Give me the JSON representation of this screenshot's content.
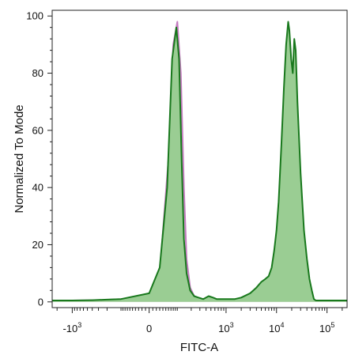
{
  "chart_data": {
    "type": "area",
    "xlabel": "FITC-A",
    "ylabel": "Normalized To Mode",
    "x_scale": "biexponential",
    "xlim": [
      -2500,
      250000
    ],
    "ylim": [
      -2,
      102
    ],
    "grid": false,
    "x_ticks": [
      {
        "value": -1000,
        "base": "-10",
        "exp": "3"
      },
      {
        "value": 0,
        "base": "0",
        "exp": ""
      },
      {
        "value": 1000,
        "base": "10",
        "exp": "3"
      },
      {
        "value": 10000,
        "base": "10",
        "exp": "4"
      },
      {
        "value": 100000,
        "base": "10",
        "exp": "5"
      }
    ],
    "y_ticks": [
      0,
      20,
      40,
      60,
      80,
      100
    ],
    "series": [
      {
        "key": "isotype",
        "fill": "#f7d5ee",
        "stroke": "#c47cc0",
        "x": [
          -2500,
          -1000,
          -300,
          -100,
          0,
          30,
          60,
          80,
          100,
          120,
          140,
          160,
          190,
          230,
          300,
          500,
          1000,
          10000,
          250000
        ],
        "y": [
          0.5,
          0.5,
          0.6,
          1,
          2,
          10,
          50,
          90,
          98,
          80,
          40,
          15,
          5,
          2,
          1,
          0.5,
          0.5,
          0.5,
          0.5
        ]
      },
      {
        "key": "stained",
        "fill": "#9acd93",
        "stroke": "#18781c",
        "x": [
          -2500,
          -1000,
          -400,
          -200,
          -100,
          0,
          30,
          55,
          75,
          95,
          110,
          125,
          140,
          160,
          190,
          230,
          280,
          350,
          450,
          550,
          650,
          800,
          1000,
          1500,
          2000,
          3000,
          4000,
          5000,
          6000,
          7000,
          8000,
          9000,
          10000,
          11000,
          12500,
          14000,
          15500,
          17000,
          18000,
          19500,
          21000,
          22500,
          24000,
          26000,
          30000,
          35000,
          40000,
          45000,
          50000,
          55000,
          60000,
          80000,
          250000
        ],
        "y": [
          0.5,
          0.5,
          0.6,
          0.8,
          1,
          3,
          12,
          40,
          85,
          96,
          85,
          50,
          22,
          10,
          4,
          2,
          1.5,
          1,
          2,
          1.5,
          1,
          1,
          1,
          1,
          1.5,
          3,
          5,
          7,
          8,
          9,
          12,
          18,
          25,
          35,
          55,
          75,
          90,
          98,
          95,
          85,
          80,
          92,
          88,
          70,
          45,
          25,
          15,
          8,
          4,
          1,
          0.5,
          0.5,
          0.5
        ]
      }
    ]
  }
}
